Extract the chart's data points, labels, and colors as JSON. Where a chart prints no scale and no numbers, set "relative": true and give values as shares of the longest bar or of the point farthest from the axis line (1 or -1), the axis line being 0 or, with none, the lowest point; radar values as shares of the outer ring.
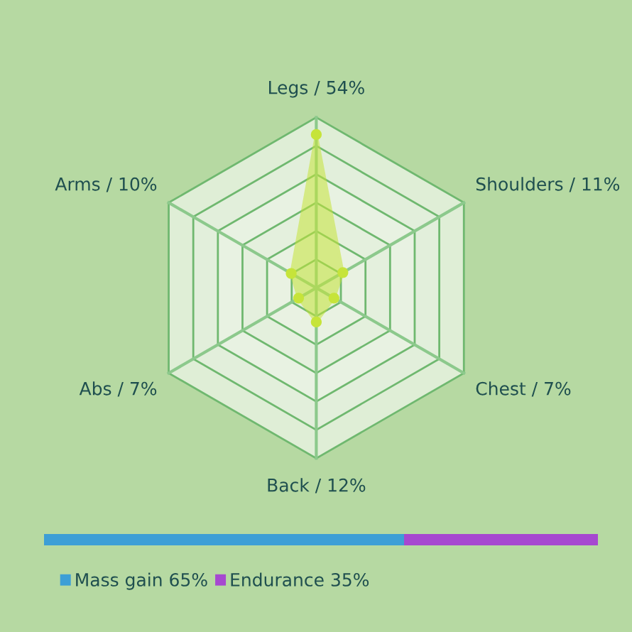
{
  "chart_data": [
    {
      "type": "radar",
      "categories": [
        "Legs / 54%",
        "Shoulders / 11%",
        "Chest / 7%",
        "Back / 12%",
        "Abs / 7%",
        "Arms / 10%"
      ],
      "relative": true,
      "grid": true,
      "marker": "circle",
      "series": [
        {
          "color": "#c6e43a",
          "values": [
            0.9,
            0.18,
            0.12,
            0.2,
            0.12,
            0.17
          ]
        }
      ]
    },
    {
      "type": "bar",
      "orientation": "horizontal",
      "stacked": true,
      "relative": true,
      "legend": "bottom",
      "categories": [
        null
      ],
      "series": [
        {
          "name": "Mass gain 65%",
          "color": "#3d9fd6",
          "values": [
            0.65
          ]
        },
        {
          "name": "Endurance 35%",
          "color": "#a648d0",
          "values": [
            0.35
          ]
        }
      ]
    }
  ]
}
